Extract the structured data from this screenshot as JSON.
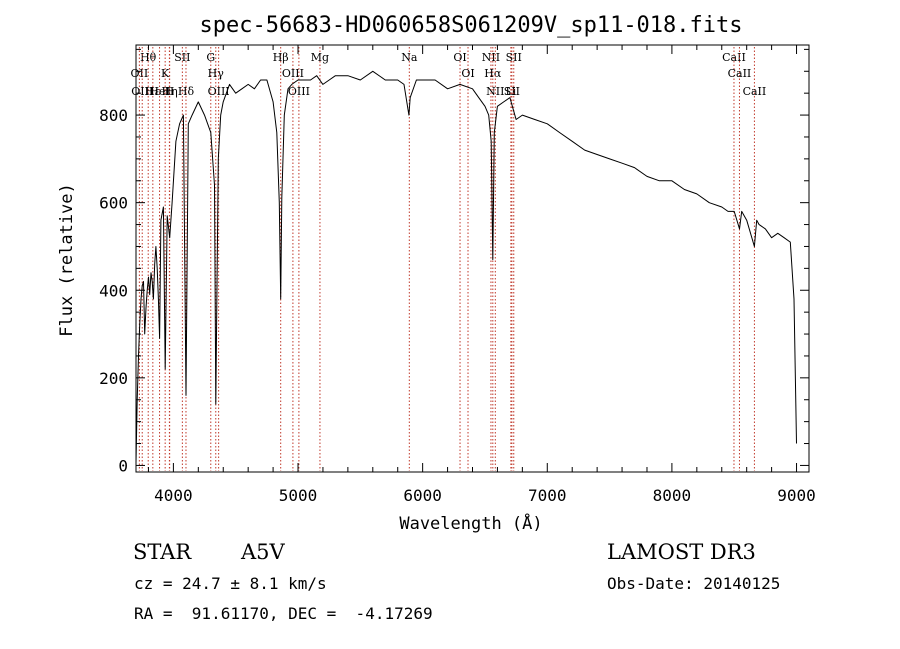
{
  "chart_data": {
    "type": "line",
    "title": "spec-56683-HD060658S061209V_sp11-018.fits",
    "xlabel": "Wavelength (Å)",
    "ylabel": "Flux (relative)",
    "xlim": [
      3700,
      9100
    ],
    "ylim": [
      -15,
      960
    ],
    "xticks": [
      4000,
      5000,
      6000,
      7000,
      8000,
      9000
    ],
    "yticks": [
      0,
      200,
      400,
      600,
      800
    ],
    "series": [
      {
        "x": [
          3700,
          3710,
          3720,
          3730,
          3740,
          3750,
          3760,
          3770,
          3780,
          3790,
          3800,
          3810,
          3820,
          3830,
          3840,
          3850,
          3860,
          3870,
          3880,
          3889,
          3900,
          3920,
          3934,
          3950,
          3970,
          3990,
          4020,
          4050,
          4080,
          4101,
          4120,
          4150,
          4200,
          4250,
          4300,
          4330,
          4340,
          4360,
          4380,
          4400,
          4450,
          4500,
          4550,
          4600,
          4650,
          4700,
          4750,
          4800,
          4830,
          4850,
          4861,
          4870,
          4890,
          4920,
          4950,
          5000,
          5050,
          5100,
          5150,
          5200,
          5250,
          5300,
          5400,
          5500,
          5600,
          5700,
          5800,
          5850,
          5890,
          5900,
          5950,
          6000,
          6100,
          6200,
          6300,
          6400,
          6450,
          6500,
          6530,
          6550,
          6563,
          6575,
          6600,
          6650,
          6700,
          6750,
          6800,
          6900,
          7000,
          7100,
          7200,
          7300,
          7400,
          7500,
          7600,
          7700,
          7800,
          7900,
          8000,
          8100,
          8200,
          8300,
          8400,
          8450,
          8500,
          8542,
          8560,
          8600,
          8662,
          8680,
          8700,
          8750,
          8800,
          8850,
          8900,
          8950,
          8980,
          8995,
          9000
        ],
        "y": [
          5,
          150,
          250,
          320,
          380,
          410,
          420,
          300,
          360,
          400,
          430,
          390,
          440,
          420,
          380,
          460,
          500,
          450,
          380,
          290,
          560,
          590,
          220,
          570,
          520,
          600,
          740,
          780,
          800,
          160,
          780,
          800,
          830,
          800,
          760,
          640,
          140,
          700,
          800,
          830,
          870,
          850,
          860,
          870,
          860,
          880,
          880,
          830,
          760,
          600,
          380,
          610,
          800,
          860,
          870,
          880,
          880,
          880,
          890,
          870,
          880,
          890,
          890,
          880,
          900,
          880,
          880,
          870,
          800,
          840,
          880,
          880,
          880,
          860,
          870,
          860,
          840,
          820,
          800,
          740,
          470,
          760,
          820,
          830,
          840,
          790,
          800,
          790,
          780,
          760,
          740,
          720,
          710,
          700,
          690,
          680,
          660,
          650,
          650,
          630,
          620,
          600,
          590,
          580,
          580,
          540,
          580,
          560,
          500,
          560,
          550,
          540,
          520,
          530,
          520,
          510,
          380,
          130,
          50
        ]
      }
    ],
    "annotations": [
      {
        "wavelength": 3798,
        "label": "Hθ"
      },
      {
        "wavelength": 3727,
        "label": "OII"
      },
      {
        "wavelength": 3750,
        "label": "OIII"
      },
      {
        "wavelength": 3835,
        "label": "Hε"
      },
      {
        "wavelength": 3889,
        "label": "HeI"
      },
      {
        "wavelength": 3934,
        "label": "K"
      },
      {
        "wavelength": 3968,
        "label": "H"
      },
      {
        "wavelength": 3970,
        "label": "Hη"
      },
      {
        "wavelength": 4072,
        "label": "SII"
      },
      {
        "wavelength": 4101,
        "label": "Hδ"
      },
      {
        "wavelength": 4300,
        "label": "G"
      },
      {
        "wavelength": 4340,
        "label": "Hγ"
      },
      {
        "wavelength": 4363,
        "label": "OIII"
      },
      {
        "wavelength": 4861,
        "label": "Hβ"
      },
      {
        "wavelength": 4959,
        "label": "OIII"
      },
      {
        "wavelength": 5007,
        "label": "OIII"
      },
      {
        "wavelength": 5176,
        "label": "Mg"
      },
      {
        "wavelength": 5893,
        "label": "Na"
      },
      {
        "wavelength": 6300,
        "label": "OI"
      },
      {
        "wavelength": 6364,
        "label": "OI"
      },
      {
        "wavelength": 6548,
        "label": "NII"
      },
      {
        "wavelength": 6563,
        "label": "Hα"
      },
      {
        "wavelength": 6583,
        "label": "NII"
      },
      {
        "wavelength": 6708,
        "label": "Li"
      },
      {
        "wavelength": 6716,
        "label": "SII"
      },
      {
        "wavelength": 6731,
        "label": "SII"
      },
      {
        "wavelength": 8498,
        "label": "CaII"
      },
      {
        "wavelength": 8542,
        "label": "CaII"
      },
      {
        "wavelength": 8662,
        "label": "CaII"
      }
    ]
  },
  "info": {
    "object_class": "STAR",
    "subclass": "A5V",
    "survey": "LAMOST DR3",
    "redshift": "cz = 24.7 ± 8.1 km/s",
    "obs_date": "Obs-Date: 20140125",
    "coords": "RA =  91.61170, DEC =  -4.17269"
  },
  "colors": {
    "spectrum": "#000000",
    "line_markers": "#c0392b",
    "axes": "#000000"
  }
}
